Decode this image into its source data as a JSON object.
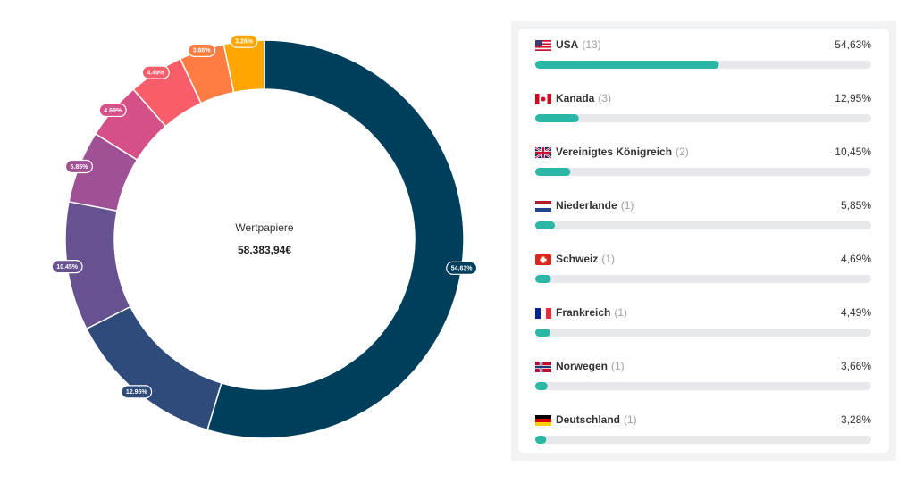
{
  "chart_data": [
    {
      "type": "donut",
      "title": "Wertpapiere",
      "subtitle": "58.383,94€",
      "values": [
        54.63,
        12.95,
        10.45,
        5.85,
        4.69,
        4.49,
        3.66,
        3.28
      ],
      "value_labels": [
        "54.63%",
        "12.95%",
        "10.45%",
        "5.85%",
        "4.69%",
        "4.49%",
        "3.66%",
        "3.28%"
      ],
      "colors": [
        "#003f5c",
        "#2f4b7c",
        "#665191",
        "#a05195",
        "#d45087",
        "#f95d6a",
        "#ff7c43",
        "#ffa600"
      ]
    },
    {
      "type": "bar",
      "orientation": "horizontal",
      "categories": [
        "USA",
        "Kanada",
        "Vereinigtes Königreich",
        "Niederlande",
        "Schweiz",
        "Frankreich",
        "Norwegen",
        "Deutschland"
      ],
      "counts": [
        "(13)",
        "(3)",
        "(2)",
        "(1)",
        "(1)",
        "(1)",
        "(1)",
        "(1)"
      ],
      "values": [
        54.63,
        12.95,
        10.45,
        5.85,
        4.69,
        4.49,
        3.66,
        3.28
      ],
      "value_labels": [
        "54,63%",
        "12,95%",
        "10,45%",
        "5,85%",
        "4,69%",
        "4,49%",
        "3,66%",
        "3,28%"
      ],
      "color": "#2bb7a6",
      "xlim": [
        0,
        100
      ]
    }
  ]
}
